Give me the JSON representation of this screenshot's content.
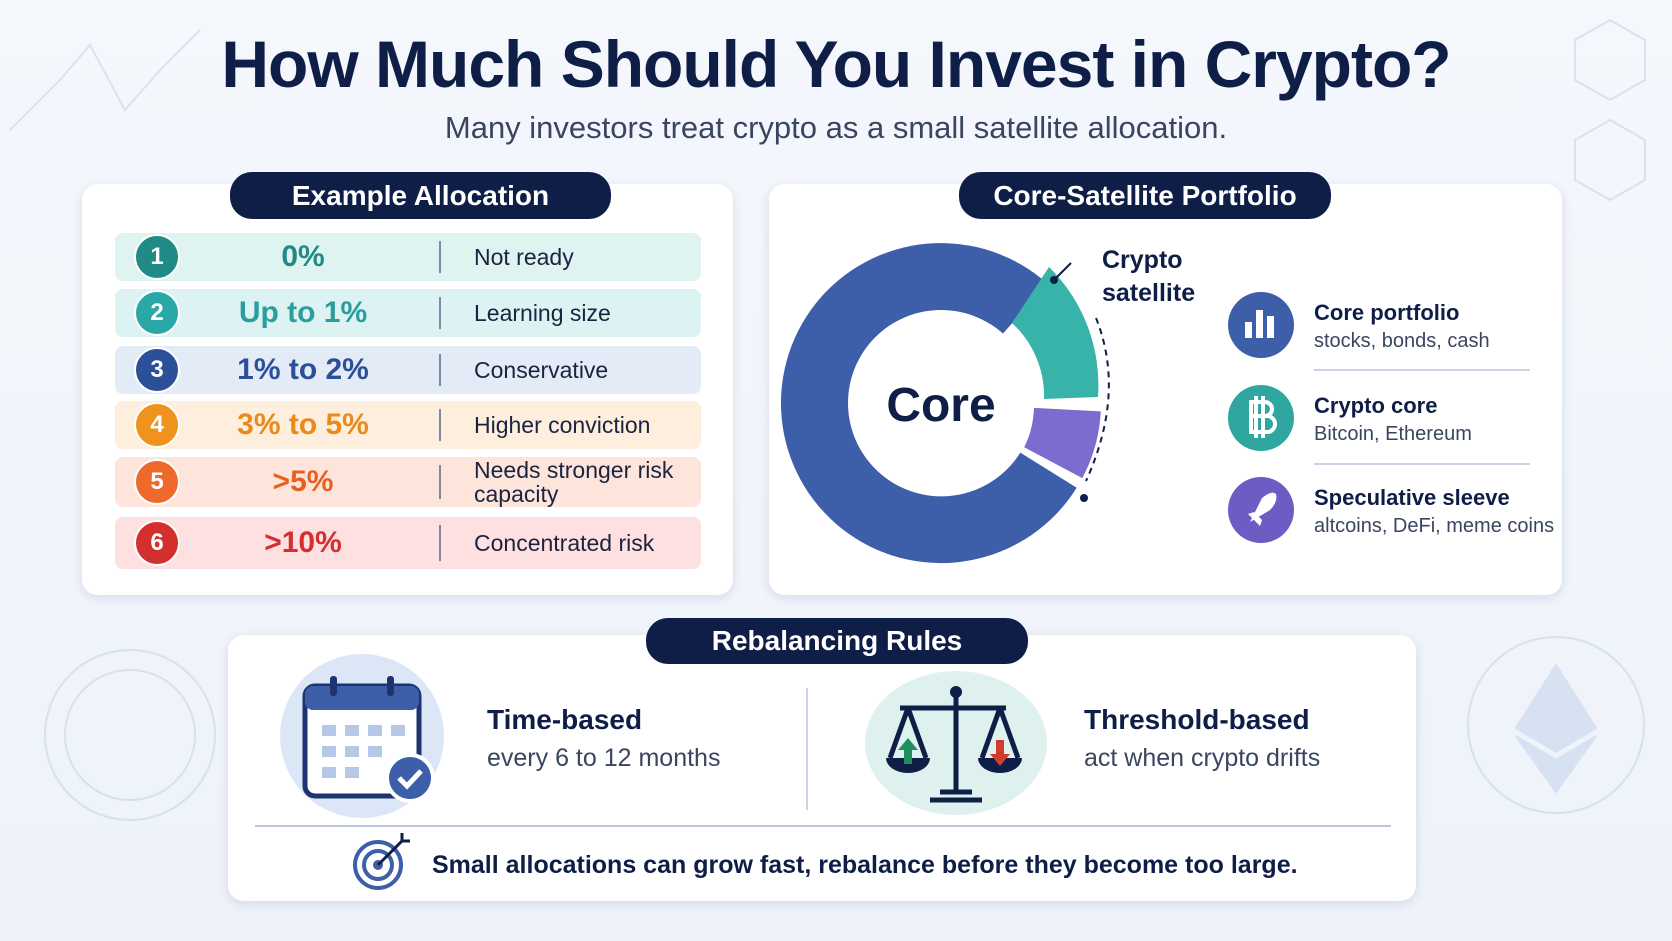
{
  "header": {
    "title": "How Much Should You Invest in Crypto?",
    "subtitle": "Many investors treat crypto as a small satellite allocation."
  },
  "allocation": {
    "title": "Example Allocation",
    "rows": [
      {
        "number": "1",
        "range": "0%",
        "label": "Not ready"
      },
      {
        "number": "2",
        "range": "Up to 1%",
        "label": "Learning size"
      },
      {
        "number": "3",
        "range": "1% to 2%",
        "label": "Conservative"
      },
      {
        "number": "4",
        "range": "3% to 5%",
        "label": "Higher conviction"
      },
      {
        "number": "5",
        "range": ">5%",
        "label": "Needs stronger risk capacity"
      },
      {
        "number": "6",
        "range": ">10%",
        "label": "Concentrated risk"
      }
    ]
  },
  "portfolio": {
    "title": "Core-Satellite Portfolio",
    "center": "Core",
    "callout": "Crypto satellite",
    "legend": [
      {
        "title": "Core portfolio",
        "detail": "stocks, bonds, cash"
      },
      {
        "title": "Crypto core",
        "detail": "Bitcoin, Ethereum"
      },
      {
        "title": "Speculative sleeve",
        "detail": "altcoins, DeFi, meme coins"
      }
    ]
  },
  "rebalancing": {
    "title": "Rebalancing Rules",
    "rules": [
      {
        "title": "Time-based",
        "detail": "every 6 to 12 months"
      },
      {
        "title": "Threshold-based",
        "detail": "act when crypto drifts"
      }
    ],
    "note": "Small allocations can grow fast, rebalance before they become too large."
  }
}
